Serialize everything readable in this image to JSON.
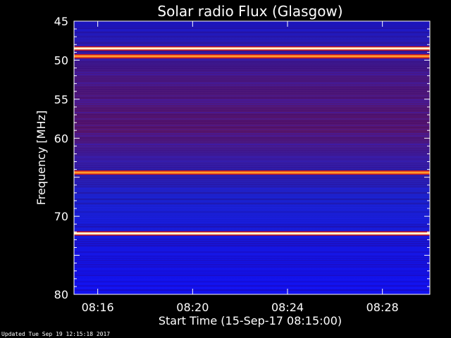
{
  "chart_data": {
    "type": "heatmap",
    "title": "Solar radio Flux (Glasgow)",
    "xlabel": "Start Time (15-Sep-17 08:15:00)",
    "ylabel": "Frequency [MHz]",
    "x_ticks": [
      {
        "label": "08:16",
        "minutes": 1
      },
      {
        "label": "08:20",
        "minutes": 5
      },
      {
        "label": "08:24",
        "minutes": 9
      },
      {
        "label": "08:28",
        "minutes": 13
      }
    ],
    "x_range_minutes": [
      0,
      15
    ],
    "y_ticks": [
      45,
      50,
      55,
      60,
      65,
      70,
      75,
      80
    ],
    "y_tick_labels": [
      "45",
      "50",
      "55",
      "60",
      "",
      "70",
      "",
      "80"
    ],
    "ylim": [
      45,
      80
    ],
    "y_inverted": true,
    "colormap": [
      "#1010d8",
      "#3a22c8",
      "#6a1a78",
      "#c01010",
      "#ff6a00",
      "#ffffe0"
    ],
    "bands": [
      {
        "freq": 48.5,
        "intensity": 1.0
      },
      {
        "freq": 49.5,
        "intensity": 0.85
      },
      {
        "freq": 64.4,
        "intensity": 0.78
      },
      {
        "freq": 72.2,
        "intensity": 1.0
      }
    ],
    "footer": "Updated Tue Sep 19 12:15:18 2017"
  }
}
